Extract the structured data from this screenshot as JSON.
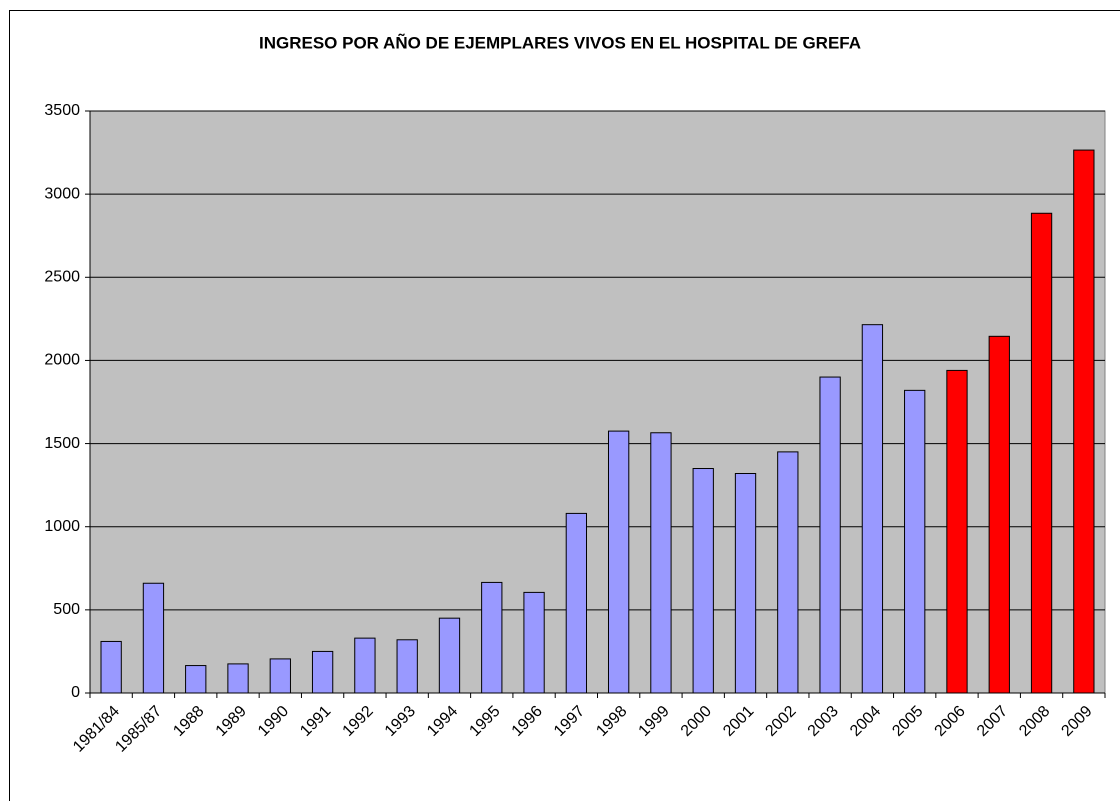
{
  "chart_data": {
    "type": "bar",
    "title": "INGRESO POR AÑO DE EJEMPLARES VIVOS EN EL HOSPITAL DE GREFA",
    "categories": [
      "1981/84",
      "1985/87",
      "1988",
      "1989",
      "1990",
      "1991",
      "1992",
      "1993",
      "1994",
      "1995",
      "1996",
      "1997",
      "1998",
      "1999",
      "2000",
      "2001",
      "2002",
      "2003",
      "2004",
      "2005",
      "2006",
      "2007",
      "2008",
      "2009"
    ],
    "values": [
      310,
      660,
      165,
      175,
      205,
      250,
      330,
      320,
      450,
      665,
      605,
      1080,
      1575,
      1565,
      1350,
      1320,
      1450,
      1900,
      2215,
      1820,
      1940,
      2145,
      2885,
      3265
    ],
    "colors": [
      "#9999ff",
      "#9999ff",
      "#9999ff",
      "#9999ff",
      "#9999ff",
      "#9999ff",
      "#9999ff",
      "#9999ff",
      "#9999ff",
      "#9999ff",
      "#9999ff",
      "#9999ff",
      "#9999ff",
      "#9999ff",
      "#9999ff",
      "#9999ff",
      "#9999ff",
      "#9999ff",
      "#9999ff",
      "#9999ff",
      "#ff0000",
      "#ff0000",
      "#ff0000",
      "#ff0000"
    ],
    "ylim": [
      0,
      3500
    ],
    "yticks": [
      0,
      500,
      1000,
      1500,
      2000,
      2500,
      3000,
      3500
    ],
    "grid": true
  }
}
